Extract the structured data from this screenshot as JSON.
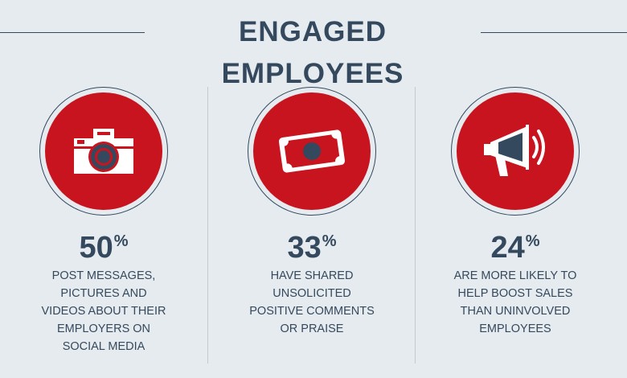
{
  "title": "ENGAGED EMPLOYEES",
  "stats": [
    {
      "icon": "camera-icon",
      "value": "50",
      "symbol": "%",
      "lines": [
        "POST MESSAGES,",
        "PICTURES AND",
        "VIDEOS ABOUT THEIR",
        "EMPLOYERS ON",
        "SOCIAL MEDIA"
      ]
    },
    {
      "icon": "money-bill-icon",
      "value": "33",
      "symbol": "%",
      "lines": [
        "HAVE SHARED",
        "UNSOLICITED",
        "POSITIVE COMMENTS",
        "OR PRAISE"
      ]
    },
    {
      "icon": "megaphone-icon",
      "value": "24",
      "symbol": "%",
      "lines": [
        "ARE MORE LIKELY TO",
        "HELP BOOST SALES",
        "THAN UNINVOLVED",
        "EMPLOYEES"
      ]
    }
  ],
  "colors": {
    "background": "#e6ebef",
    "accent": "#c8141f",
    "text": "#34495e"
  }
}
